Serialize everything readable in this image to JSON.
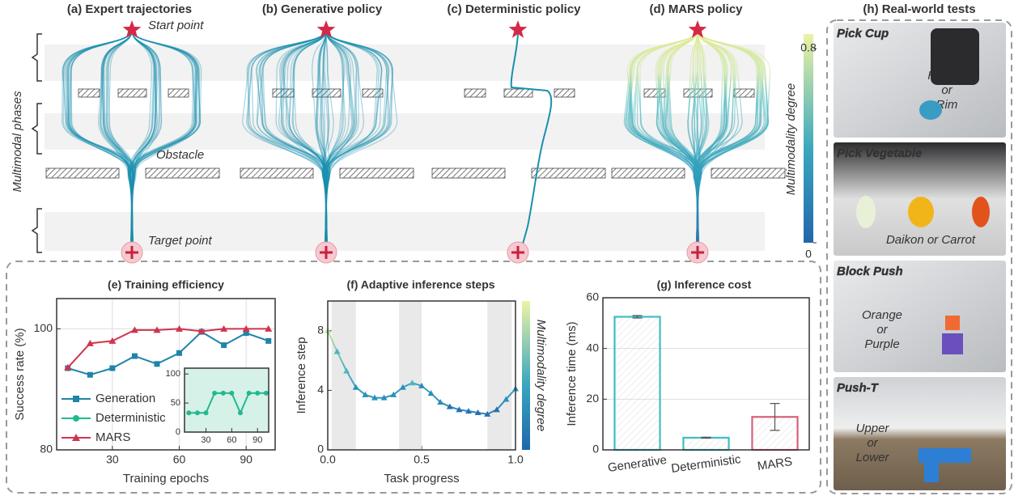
{
  "top": {
    "panel_titles": [
      "(a) Expert trajectories",
      "(b) Generative policy",
      "(c) Deterministic policy",
      "(d) MARS policy"
    ],
    "start_label": "Start point",
    "target_label": "Target point",
    "obstacle_label": "Obstacle",
    "phases_label": "Multimodal phases",
    "colorbar": {
      "label": "Multimodality degree",
      "lim": [
        0,
        0.86
      ],
      "ticks": [
        0,
        0.8
      ]
    }
  },
  "realworld": {
    "title": "(h) Real-world tests",
    "tests": [
      {
        "name": "Pick Cup",
        "caption": [
          "Handle",
          "or",
          "Rim"
        ]
      },
      {
        "name": "Pick Vegetable",
        "caption": [
          "Daikon or Carrot"
        ]
      },
      {
        "name": "Block Push",
        "caption": [
          "Orange",
          "or",
          "Purple"
        ]
      },
      {
        "name": "Push-T",
        "caption": [
          "Upper",
          "or",
          "Lower"
        ]
      }
    ]
  },
  "chart_data": [
    {
      "type": "line",
      "title": "(e) Training efficiency",
      "x_label": "Training epochs",
      "y_label": "Success rate (%)",
      "x": [
        10,
        20,
        30,
        40,
        50,
        60,
        70,
        80,
        90,
        100
      ],
      "xlim": [
        5,
        103
      ],
      "ylim": [
        80,
        105
      ],
      "xticks": [
        30,
        60,
        90
      ],
      "yticks": [
        80,
        100
      ],
      "grid": true,
      "series": [
        {
          "name": "Generation",
          "color": "#1f84a8",
          "marker": "square",
          "values": [
            93.5,
            92.4,
            93.5,
            95.5,
            94.2,
            96,
            99.5,
            97.3,
            99.3,
            98
          ]
        },
        {
          "name": "MARS",
          "color": "#d0344f",
          "marker": "triangle",
          "values": [
            93.6,
            97.6,
            98,
            99.8,
            99.8,
            100,
            99.6,
            100,
            100,
            100
          ]
        }
      ]
    },
    {
      "type": "line",
      "x": [
        10,
        20,
        30,
        40,
        50,
        60,
        70,
        80,
        90,
        100
      ],
      "xlim": [
        5,
        103
      ],
      "ylim": [
        0,
        110
      ],
      "xticks": [
        30,
        60,
        90
      ],
      "yticks": [
        0,
        50,
        100
      ],
      "series": [
        {
          "name": "Deterministic",
          "color": "#22b890",
          "marker": "circle",
          "values": [
            33,
            33,
            33,
            67,
            67,
            67,
            33,
            67,
            67,
            67
          ]
        }
      ]
    },
    {
      "type": "line",
      "title": "(f) Adaptive inference steps",
      "x_label": "Task progress",
      "y_label": "Inference step",
      "colorbar_label": "Multimodality degree",
      "x": [
        0,
        0.05,
        0.1,
        0.15,
        0.2,
        0.25,
        0.3,
        0.35,
        0.4,
        0.45,
        0.5,
        0.55,
        0.6,
        0.65,
        0.7,
        0.75,
        0.8,
        0.85,
        0.9,
        0.95,
        1.0
      ],
      "values": [
        8,
        6.6,
        5.3,
        4.2,
        3.7,
        3.5,
        3.5,
        3.7,
        4.2,
        4.5,
        4.3,
        3.8,
        3.2,
        2.9,
        2.7,
        2.6,
        2.5,
        2.4,
        2.7,
        3.4,
        4.1
      ],
      "xlim": [
        0,
        1
      ],
      "ylim": [
        0,
        10
      ],
      "xticks": [
        {
          "value": 0,
          "label": "0.0"
        },
        {
          "value": 0.5,
          "label": "0.5"
        },
        {
          "value": 1,
          "label": "1.0"
        }
      ],
      "yticks": [
        0,
        4,
        8
      ],
      "highlight_spans": [
        [
          0.02,
          0.15
        ],
        [
          0.38,
          0.5
        ],
        [
          0.85,
          0.98
        ]
      ]
    },
    {
      "type": "bar",
      "title": "(g) Inference cost",
      "y_label": "Inference time (ms)",
      "categories": [
        "Generative",
        "Deterministic",
        "MARS"
      ],
      "values": [
        52.5,
        4.8,
        13
      ],
      "errors": [
        0.5,
        0.2,
        5.3
      ],
      "colors": [
        "#3dbdc4",
        "#3dbdc4",
        "#d9607a"
      ],
      "ylim": [
        0,
        60
      ],
      "yticks": [
        0,
        20,
        40,
        60
      ],
      "grid": true
    }
  ]
}
